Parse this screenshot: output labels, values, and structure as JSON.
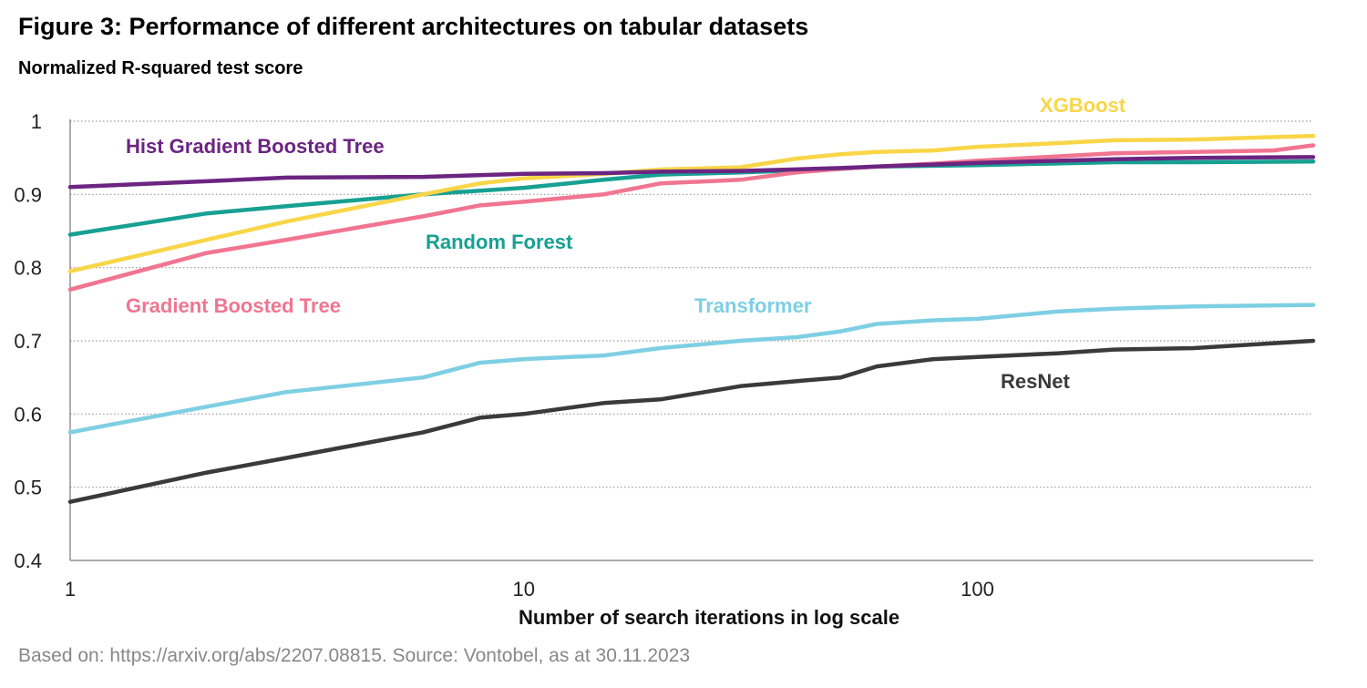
{
  "title": "Figure 3: Performance of different architectures on tabular datasets",
  "subtitle": "Normalized R-squared test score",
  "footer": "Based on: https://arxiv.org/abs/2207.08815. Source: Vontobel, as at 30.11.2023",
  "chart_data": {
    "type": "line",
    "xlabel": "Number of search iterations in log scale",
    "ylabel": "Normalized R-squared test score",
    "xscale": "log",
    "xlim": [
      1,
      550
    ],
    "ylim": [
      0.4,
      1.0
    ],
    "xticks": [
      1,
      10,
      100
    ],
    "xtick_labels": [
      "1",
      "10",
      "100"
    ],
    "yticks": [
      0.4,
      0.5,
      0.6,
      0.7,
      0.8,
      0.9,
      1.0
    ],
    "ytick_labels": [
      "0.4",
      "0.5",
      "0.6",
      "0.7",
      "0.8",
      "0.9",
      "1"
    ],
    "grid": "horizontal dotted",
    "legend": "inline labels",
    "series": [
      {
        "name": "Hist Gradient Boosted Tree",
        "color": "#6b2581",
        "x": [
          1,
          2,
          3,
          6,
          10,
          15,
          20,
          30,
          50,
          60,
          100,
          200,
          300,
          550
        ],
        "y": [
          0.91,
          0.918,
          0.923,
          0.924,
          0.928,
          0.929,
          0.931,
          0.932,
          0.936,
          0.938,
          0.943,
          0.948,
          0.95,
          0.951
        ]
      },
      {
        "name": "Random Forest",
        "color": "#17a093",
        "x": [
          1,
          2,
          3,
          6,
          10,
          15,
          20,
          30,
          50,
          60,
          100,
          200,
          300,
          550
        ],
        "y": [
          0.845,
          0.874,
          0.884,
          0.9,
          0.909,
          0.92,
          0.927,
          0.93,
          0.935,
          0.938,
          0.94,
          0.944,
          0.944,
          0.945
        ]
      },
      {
        "name": "XGBoost",
        "color": "#f9d548",
        "x": [
          1,
          2,
          3,
          6,
          8,
          10,
          15,
          20,
          30,
          40,
          50,
          60,
          80,
          100,
          150,
          200,
          300,
          550
        ],
        "y": [
          0.795,
          0.838,
          0.863,
          0.9,
          0.915,
          0.922,
          0.928,
          0.934,
          0.937,
          0.949,
          0.955,
          0.958,
          0.96,
          0.965,
          0.97,
          0.974,
          0.975,
          0.98
        ]
      },
      {
        "name": "Gradient Boosted Tree",
        "color": "#f07591",
        "x": [
          1,
          2,
          3,
          6,
          8,
          10,
          15,
          20,
          30,
          40,
          50,
          60,
          80,
          100,
          150,
          200,
          300,
          450,
          550
        ],
        "y": [
          0.77,
          0.82,
          0.838,
          0.87,
          0.885,
          0.89,
          0.9,
          0.915,
          0.92,
          0.93,
          0.935,
          0.938,
          0.942,
          0.946,
          0.952,
          0.956,
          0.958,
          0.96,
          0.967
        ]
      },
      {
        "name": "Transformer",
        "color": "#7ecfe3",
        "x": [
          1,
          2,
          3,
          6,
          8,
          10,
          15,
          20,
          30,
          40,
          50,
          60,
          80,
          100,
          150,
          200,
          300,
          550
        ],
        "y": [
          0.575,
          0.61,
          0.63,
          0.65,
          0.67,
          0.675,
          0.68,
          0.69,
          0.7,
          0.705,
          0.713,
          0.723,
          0.728,
          0.73,
          0.74,
          0.744,
          0.747,
          0.749
        ]
      },
      {
        "name": "ResNet",
        "color": "#3a3a3a",
        "x": [
          1,
          2,
          3,
          6,
          8,
          10,
          15,
          20,
          30,
          40,
          50,
          60,
          80,
          100,
          150,
          200,
          300,
          550
        ],
        "y": [
          0.48,
          0.52,
          0.54,
          0.575,
          0.595,
          0.6,
          0.615,
          0.62,
          0.638,
          0.645,
          0.65,
          0.665,
          0.675,
          0.678,
          0.683,
          0.688,
          0.69,
          0.7
        ]
      }
    ]
  }
}
